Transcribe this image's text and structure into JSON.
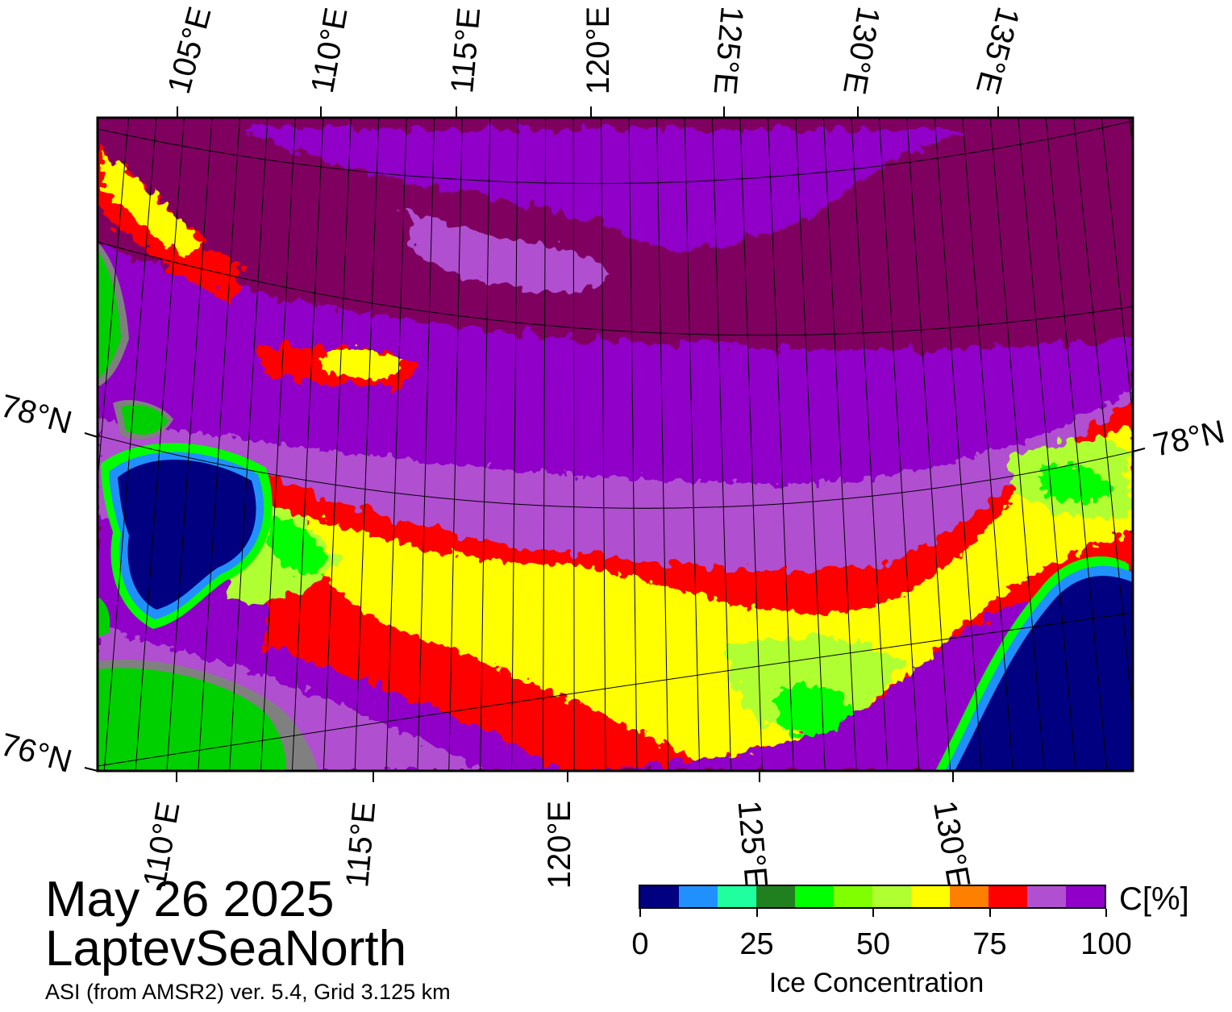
{
  "map": {
    "lon_labels_top": [
      "105°E",
      "110°E",
      "115°E",
      "120°E",
      "125°E",
      "130°E",
      "135°E"
    ],
    "lon_labels_bottom": [
      "110°E",
      "115°E",
      "120°E",
      "125°E",
      "130°E"
    ],
    "lat_labels": [
      "78°N",
      "76°N"
    ],
    "lat_label_right": "78°N",
    "colors": {
      "open_water": "#000080",
      "land": "#00d000",
      "land_shadow": "#808080",
      "high_ice": "#800060",
      "ice_90": "#9000c8",
      "ice_85": "#b050d0",
      "ice_80": "#ff0000",
      "ice_75": "#ff8000",
      "ice_70": "#ffff00",
      "ice_60": "#b0ff20",
      "ice_50": "#80ff00",
      "ice_40": "#00ff00",
      "ice_30": "#208020",
      "ice_20": "#20ff90",
      "ice_10": "#2090ff"
    }
  },
  "caption": {
    "date": "May 26 2025",
    "region": "LaptevSeaNorth",
    "source": "ASI (from AMSR2) ver. 5.4,  Grid 3.125 km"
  },
  "colorbar": {
    "title": "Ice Concentration",
    "unit": "C[%]",
    "tick_labels": [
      "0",
      "25",
      "50",
      "75",
      "100"
    ],
    "colors": [
      "#000080",
      "#2090ff",
      "#20ffa0",
      "#208020",
      "#00ff00",
      "#80ff00",
      "#b0ff30",
      "#ffff00",
      "#ff8000",
      "#ff0000",
      "#b050d0",
      "#9000c8"
    ],
    "range": [
      0,
      100
    ]
  }
}
